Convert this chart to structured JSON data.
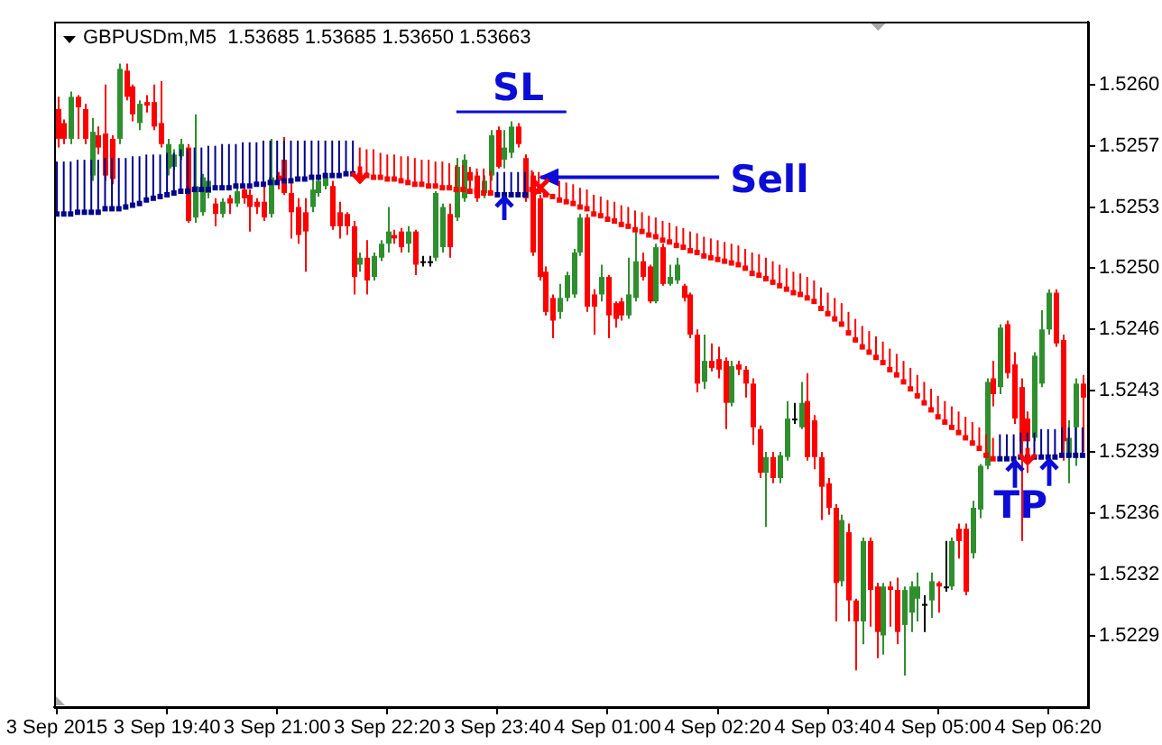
{
  "chart_data": {
    "type": "candlestick",
    "title": "GBPUSDm,M5  1.53685 1.53685 1.53650 1.53663",
    "x": [
      "2015-09-03T18:20",
      "2015-09-03T18:25",
      "2015-09-03T18:30",
      "2015-09-03T18:35",
      "2015-09-03T18:40",
      "2015-09-03T18:45",
      "2015-09-03T18:50",
      "2015-09-03T18:55",
      "2015-09-03T19:00",
      "2015-09-03T19:05",
      "2015-09-03T19:10",
      "2015-09-03T19:15",
      "2015-09-03T19:20",
      "2015-09-03T19:25",
      "2015-09-03T19:30",
      "2015-09-03T19:35",
      "2015-09-03T19:40",
      "2015-09-03T19:45",
      "2015-09-03T19:50",
      "2015-09-03T19:55",
      "2015-09-03T20:00",
      "2015-09-03T20:05",
      "2015-09-03T20:10",
      "2015-09-03T20:15",
      "2015-09-03T20:20",
      "2015-09-03T20:25",
      "2015-09-03T20:30",
      "2015-09-03T20:35",
      "2015-09-03T20:40",
      "2015-09-03T20:45",
      "2015-09-03T20:50",
      "2015-09-03T20:55",
      "2015-09-03T21:00",
      "2015-09-03T21:05",
      "2015-09-03T21:10",
      "2015-09-03T21:15",
      "2015-09-03T21:20",
      "2015-09-03T21:25",
      "2015-09-03T21:30",
      "2015-09-03T21:35",
      "2015-09-03T21:40",
      "2015-09-03T21:45",
      "2015-09-03T21:50",
      "2015-09-03T21:55",
      "2015-09-03T22:00",
      "2015-09-03T22:05",
      "2015-09-03T22:10",
      "2015-09-03T22:15",
      "2015-09-03T22:20",
      "2015-09-03T22:25",
      "2015-09-03T22:30",
      "2015-09-03T22:35",
      "2015-09-03T22:40",
      "2015-09-03T22:45",
      "2015-09-03T22:50",
      "2015-09-03T22:55",
      "2015-09-03T23:00",
      "2015-09-03T23:05",
      "2015-09-03T23:10",
      "2015-09-03T23:15",
      "2015-09-03T23:20",
      "2015-09-03T23:25",
      "2015-09-03T23:30",
      "2015-09-03T23:35",
      "2015-09-03T23:40",
      "2015-09-03T23:45",
      "2015-09-03T23:50",
      "2015-09-03T23:55",
      "2015-09-04T00:00",
      "2015-09-04T00:05",
      "2015-09-04T00:10",
      "2015-09-04T00:15",
      "2015-09-04T00:20",
      "2015-09-04T00:25",
      "2015-09-04T00:30",
      "2015-09-04T00:35",
      "2015-09-04T00:40",
      "2015-09-04T00:45",
      "2015-09-04T00:50",
      "2015-09-04T00:55",
      "2015-09-04T01:00",
      "2015-09-04T01:05",
      "2015-09-04T01:10",
      "2015-09-04T01:15",
      "2015-09-04T01:20",
      "2015-09-04T01:25",
      "2015-09-04T01:30",
      "2015-09-04T01:35",
      "2015-09-04T01:40",
      "2015-09-04T01:45",
      "2015-09-04T01:50",
      "2015-09-04T01:55",
      "2015-09-04T02:00",
      "2015-09-04T02:05",
      "2015-09-04T02:10",
      "2015-09-04T02:15",
      "2015-09-04T02:20",
      "2015-09-04T02:25",
      "2015-09-04T02:30",
      "2015-09-04T02:35",
      "2015-09-04T02:40",
      "2015-09-04T02:45",
      "2015-09-04T02:50",
      "2015-09-04T02:55",
      "2015-09-04T03:00",
      "2015-09-04T03:05",
      "2015-09-04T03:10",
      "2015-09-04T03:15",
      "2015-09-04T03:20",
      "2015-09-04T03:25",
      "2015-09-04T03:30",
      "2015-09-04T03:35",
      "2015-09-04T03:40",
      "2015-09-04T03:45",
      "2015-09-04T03:50",
      "2015-09-04T03:55",
      "2015-09-04T04:00",
      "2015-09-04T04:05",
      "2015-09-04T04:10",
      "2015-09-04T04:15",
      "2015-09-04T04:20",
      "2015-09-04T04:25",
      "2015-09-04T04:30",
      "2015-09-04T04:35",
      "2015-09-04T04:40",
      "2015-09-04T04:45",
      "2015-09-04T04:50",
      "2015-09-04T04:55",
      "2015-09-04T05:00",
      "2015-09-04T05:05",
      "2015-09-04T05:10",
      "2015-09-04T05:15",
      "2015-09-04T05:20",
      "2015-09-04T05:25",
      "2015-09-04T05:30",
      "2015-09-04T05:35",
      "2015-09-04T05:40",
      "2015-09-04T05:45",
      "2015-09-04T05:50",
      "2015-09-04T05:55",
      "2015-09-04T06:00",
      "2015-09-04T06:05",
      "2015-09-04T06:10",
      "2015-09-04T06:15",
      "2015-09-04T06:20",
      "2015-09-04T06:25",
      "2015-09-04T06:30",
      "2015-09-04T06:35",
      "2015-09-04T06:40",
      "2015-09-04T06:45"
    ],
    "ohlc": [
      [
        1.52591,
        1.52598,
        1.52569,
        1.52574
      ],
      [
        1.52583,
        1.52585,
        1.52571,
        1.52574
      ],
      [
        1.52574,
        1.52601,
        1.52571,
        1.52598
      ],
      [
        1.52598,
        1.52599,
        1.52574,
        1.52592
      ],
      [
        1.52591,
        1.52594,
        1.52571,
        1.52574
      ],
      [
        1.52553,
        1.52586,
        1.5255,
        1.52578
      ],
      [
        1.52576,
        1.52581,
        1.52565,
        1.52569
      ],
      [
        1.52577,
        1.52605,
        1.5255,
        1.52553
      ],
      [
        1.52574,
        1.52576,
        1.52548,
        1.52551
      ],
      [
        1.52574,
        1.52617,
        1.52571,
        1.52614
      ],
      [
        1.52613,
        1.52617,
        1.52596,
        1.52598
      ],
      [
        1.52604,
        1.52605,
        1.52584,
        1.52588
      ],
      [
        1.52583,
        1.52596,
        1.52579,
        1.52594
      ],
      [
        1.52595,
        1.52599,
        1.52589,
        1.52593
      ],
      [
        1.52595,
        1.52605,
        1.52579,
        1.52581
      ],
      [
        1.52583,
        1.52607,
        1.52569,
        1.52571
      ],
      [
        1.52557,
        1.52574,
        1.52553,
        1.52571
      ],
      [
        1.52558,
        1.52568,
        1.52556,
        1.52565
      ],
      [
        1.52564,
        1.52574,
        1.52562,
        1.52571
      ],
      [
        1.52569,
        1.52571,
        1.52526,
        1.52527
      ],
      [
        1.52529,
        1.52588,
        1.52526,
        1.52547
      ],
      [
        1.52532,
        1.52554,
        1.5253,
        1.52552
      ],
      [
        1.52543,
        1.52552,
        1.5254,
        1.5255
      ],
      [
        1.52537,
        1.5254,
        1.52524,
        1.52531
      ],
      [
        1.52531,
        1.5254,
        1.52529,
        1.52538
      ],
      [
        1.5254,
        1.52542,
        1.52531,
        1.52537
      ],
      [
        1.52537,
        1.52547,
        1.52535,
        1.52544
      ],
      [
        1.52545,
        1.52547,
        1.52537,
        1.5254
      ],
      [
        1.52542,
        1.52545,
        1.52521,
        1.52535
      ],
      [
        1.52538,
        1.5254,
        1.52531,
        1.52535
      ],
      [
        1.52538,
        1.52548,
        1.52527,
        1.52529
      ],
      [
        1.52531,
        1.52574,
        1.52529,
        1.52552
      ],
      [
        1.52553,
        1.52555,
        1.52545,
        1.5255
      ],
      [
        1.52562,
        1.52575,
        1.52542,
        1.52543
      ],
      [
        1.52543,
        1.5255,
        1.52517,
        1.52532
      ],
      [
        1.52535,
        1.5254,
        1.52514,
        1.52519
      ],
      [
        1.52532,
        1.5254,
        1.52498,
        1.52521
      ],
      [
        1.52535,
        1.52552,
        1.52532,
        1.52545
      ],
      [
        1.52543,
        1.52553,
        1.52541,
        1.5255
      ],
      [
        1.52547,
        1.52554,
        1.52545,
        1.52552
      ],
      [
        1.52547,
        1.5255,
        1.52522,
        1.52524
      ],
      [
        1.52532,
        1.52538,
        1.52517,
        1.52524
      ],
      [
        1.52531,
        1.52532,
        1.52519,
        1.52524
      ],
      [
        1.52524,
        1.52527,
        1.52485,
        1.52495
      ],
      [
        1.52502,
        1.52509,
        1.52498,
        1.52506
      ],
      [
        1.52506,
        1.52516,
        1.52485,
        1.52493
      ],
      [
        1.52495,
        1.52509,
        1.52493,
        1.52507
      ],
      [
        1.52506,
        1.52516,
        1.52504,
        1.52514
      ],
      [
        1.52514,
        1.52535,
        1.52509,
        1.52521
      ],
      [
        1.52519,
        1.52522,
        1.52514,
        1.52517
      ],
      [
        1.52521,
        1.52523,
        1.52509,
        1.52512
      ],
      [
        1.52514,
        1.52524,
        1.52509,
        1.52521
      ],
      [
        1.52521,
        1.52522,
        1.52496,
        1.52502
      ],
      [
        1.52504,
        1.52507,
        1.52501,
        1.52504
      ],
      [
        1.52504,
        1.52507,
        1.52501,
        1.52504
      ],
      [
        1.52506,
        1.52544,
        1.52504,
        1.52543
      ],
      [
        1.52512,
        1.52537,
        1.52509,
        1.52535
      ],
      [
        1.52531,
        1.52537,
        1.52506,
        1.52512
      ],
      [
        1.52529,
        1.52563,
        1.52527,
        1.52558
      ],
      [
        1.5254,
        1.52565,
        1.52538,
        1.52562
      ],
      [
        1.52555,
        1.52557,
        1.52547,
        1.5255
      ],
      [
        1.52553,
        1.52555,
        1.52538,
        1.5254
      ],
      [
        1.52543,
        1.52553,
        1.5254,
        1.5255
      ],
      [
        1.52553,
        1.52579,
        1.5255,
        1.52576
      ],
      [
        1.52579,
        1.52581,
        1.52557,
        1.52558
      ],
      [
        1.52562,
        1.52579,
        1.52557,
        1.52569
      ],
      [
        1.52566,
        1.52584,
        1.52563,
        1.52581
      ],
      [
        1.52581,
        1.52583,
        1.52569,
        1.52571
      ],
      [
        1.52563,
        1.52565,
        1.52538,
        1.5254
      ],
      [
        1.52553,
        1.52555,
        1.52507,
        1.52509
      ],
      [
        1.5254,
        1.52542,
        1.52493,
        1.52495
      ],
      [
        1.52498,
        1.52501,
        1.52473,
        1.52475
      ],
      [
        1.52483,
        1.52485,
        1.5246,
        1.5247
      ],
      [
        1.52475,
        1.52491,
        1.52471,
        1.52483
      ],
      [
        1.52483,
        1.52498,
        1.52481,
        1.52496
      ],
      [
        1.52485,
        1.52511,
        1.52483,
        1.52509
      ],
      [
        1.52509,
        1.52531,
        1.52507,
        1.52529
      ],
      [
        1.52529,
        1.52531,
        1.52475,
        1.52478
      ],
      [
        1.52485,
        1.52488,
        1.52462,
        1.52478
      ],
      [
        1.52485,
        1.52502,
        1.52481,
        1.52495
      ],
      [
        1.52495,
        1.52496,
        1.5246,
        1.52473
      ],
      [
        1.5248,
        1.52481,
        1.52466,
        1.52471
      ],
      [
        1.52481,
        1.52483,
        1.5247,
        1.52473
      ],
      [
        1.52473,
        1.52506,
        1.52471,
        1.52485
      ],
      [
        1.52483,
        1.52521,
        1.52481,
        1.52504
      ],
      [
        1.52504,
        1.52509,
        1.52493,
        1.52495
      ],
      [
        1.52501,
        1.52502,
        1.5248,
        1.52481
      ],
      [
        1.52481,
        1.52514,
        1.5248,
        1.52512
      ],
      [
        1.52512,
        1.52514,
        1.5249,
        1.52491
      ],
      [
        1.52491,
        1.52502,
        1.5249,
        1.52495
      ],
      [
        1.52493,
        1.52506,
        1.52491,
        1.52502
      ],
      [
        1.5249,
        1.52491,
        1.52481,
        1.52483
      ],
      [
        1.52485,
        1.52486,
        1.5246,
        1.52462
      ],
      [
        1.52462,
        1.52465,
        1.52429,
        1.52434
      ],
      [
        1.52435,
        1.52462,
        1.52431,
        1.52447
      ],
      [
        1.52447,
        1.52457,
        1.52441,
        1.52443
      ],
      [
        1.52448,
        1.52455,
        1.52437,
        1.52442
      ],
      [
        1.52447,
        1.52449,
        1.52408,
        1.52423
      ],
      [
        1.52423,
        1.52447,
        1.52421,
        1.52444
      ],
      [
        1.52445,
        1.52447,
        1.52439,
        1.52442
      ],
      [
        1.52442,
        1.52444,
        1.52426,
        1.52434
      ],
      [
        1.52434,
        1.52437,
        1.52399,
        1.52409
      ],
      [
        1.52408,
        1.5241,
        1.5238,
        1.52383
      ],
      [
        1.52383,
        1.52395,
        1.52352,
        1.52392
      ],
      [
        1.52392,
        1.52395,
        1.52377,
        1.5238
      ],
      [
        1.5238,
        1.52395,
        1.52377,
        1.52393
      ],
      [
        1.52392,
        1.52424,
        1.5239,
        1.52414
      ],
      [
        1.52414,
        1.52423,
        1.52411,
        1.52414
      ],
      [
        1.52409,
        1.52435,
        1.52408,
        1.52423
      ],
      [
        1.52424,
        1.5244,
        1.5239,
        1.52392
      ],
      [
        1.52413,
        1.52416,
        1.52385,
        1.52392
      ],
      [
        1.52392,
        1.52395,
        1.52356,
        1.52375
      ],
      [
        1.52377,
        1.5238,
        1.52359,
        1.52363
      ],
      [
        1.52363,
        1.52365,
        1.52298,
        1.5232
      ],
      [
        1.52321,
        1.52359,
        1.52318,
        1.52356
      ],
      [
        1.52349,
        1.52354,
        1.52298,
        1.5231
      ],
      [
        1.5231,
        1.52311,
        1.5227,
        1.52298
      ],
      [
        1.52298,
        1.52346,
        1.52285,
        1.52344
      ],
      [
        1.52344,
        1.52346,
        1.52295,
        1.52316
      ],
      [
        1.52318,
        1.5232,
        1.52277,
        1.52292
      ],
      [
        1.5229,
        1.5232,
        1.52279,
        1.52318
      ],
      [
        1.52318,
        1.52321,
        1.52295,
        1.52316
      ],
      [
        1.52316,
        1.52323,
        1.52285,
        1.52292
      ],
      [
        1.52296,
        1.52318,
        1.52267,
        1.52316
      ],
      [
        1.52303,
        1.52321,
        1.52292,
        1.52318
      ],
      [
        1.52311,
        1.52326,
        1.52298,
        1.52318
      ],
      [
        1.52308,
        1.52313,
        1.52292,
        1.52308
      ],
      [
        1.5231,
        1.52326,
        1.523,
        1.52321
      ],
      [
        1.5232,
        1.52321,
        1.52303,
        1.52318
      ],
      [
        1.52318,
        1.52344,
        1.52315,
        1.52318
      ],
      [
        1.52318,
        1.52346,
        1.52316,
        1.52344
      ],
      [
        1.52351,
        1.52354,
        1.52334,
        1.52344
      ],
      [
        1.52351,
        1.52354,
        1.52313,
        1.52315
      ],
      [
        1.52337,
        1.52367,
        1.52334,
        1.52363
      ],
      [
        1.52362,
        1.52388,
        1.52357,
        1.52387
      ],
      [
        1.52387,
        1.52437,
        1.52385,
        1.52435
      ],
      [
        1.52437,
        1.52447,
        1.52421,
        1.52428
      ],
      [
        1.52432,
        1.52468,
        1.52428,
        1.52466
      ],
      [
        1.52468,
        1.5247,
        1.52437,
        1.5244
      ],
      [
        1.52445,
        1.52452,
        1.52411,
        1.52414
      ],
      [
        1.52432,
        1.52437,
        1.52344,
        1.52401
      ],
      [
        1.52414,
        1.52418,
        1.52383,
        1.52401
      ],
      [
        1.52403,
        1.52452,
        1.52401,
        1.5245
      ],
      [
        1.52434,
        1.52476,
        1.52432,
        1.52465
      ],
      [
        1.52465,
        1.52488,
        1.52462,
        1.52486
      ],
      [
        1.52486,
        1.52488,
        1.52455,
        1.52457
      ],
      [
        1.52459,
        1.52462,
        1.5239,
        1.52401
      ],
      [
        1.52392,
        1.52413,
        1.52377,
        1.52403
      ],
      [
        1.52409,
        1.52437,
        1.52387,
        1.52434
      ],
      [
        1.52434,
        1.52439,
        1.52395,
        1.52426
      ]
    ],
    "colors": [
      "#ff0000",
      "#ff0000",
      "#2f8f2f",
      "#ff0000",
      "#ff0000",
      "#2f8f2f",
      "#ff0000",
      "#ff0000",
      "#ff0000",
      "#2f8f2f",
      "#ff0000",
      "#ff0000",
      "#2f8f2f",
      "#ff0000",
      "#ff0000",
      "#ff0000",
      "#2f8f2f",
      "#2f8f2f",
      "#2f8f2f",
      "#ff0000",
      "#2f8f2f",
      "#2f8f2f",
      "#2f8f2f",
      "#ff0000",
      "#2f8f2f",
      "#ff0000",
      "#2f8f2f",
      "#ff0000",
      "#ff0000",
      "#ff0000",
      "#ff0000",
      "#2f8f2f",
      "#ff0000",
      "#ff0000",
      "#ff0000",
      "#ff0000",
      "#ff0000",
      "#2f8f2f",
      "#2f8f2f",
      "#2f8f2f",
      "#ff0000",
      "#ff0000",
      "#ff0000",
      "#ff0000",
      "#2f8f2f",
      "#ff0000",
      "#2f8f2f",
      "#2f8f2f",
      "#2f8f2f",
      "#ff0000",
      "#ff0000",
      "#2f8f2f",
      "#ff0000",
      "#000000",
      "#000000",
      "#2f8f2f",
      "#2f8f2f",
      "#ff0000",
      "#2f8f2f",
      "#2f8f2f",
      "#ff0000",
      "#ff0000",
      "#2f8f2f",
      "#2f8f2f",
      "#ff0000",
      "#2f8f2f",
      "#2f8f2f",
      "#ff0000",
      "#ff0000",
      "#ff0000",
      "#ff0000",
      "#ff0000",
      "#ff0000",
      "#2f8f2f",
      "#2f8f2f",
      "#2f8f2f",
      "#2f8f2f",
      "#ff0000",
      "#ff0000",
      "#2f8f2f",
      "#ff0000",
      "#ff0000",
      "#ff0000",
      "#2f8f2f",
      "#2f8f2f",
      "#ff0000",
      "#ff0000",
      "#2f8f2f",
      "#ff0000",
      "#2f8f2f",
      "#2f8f2f",
      "#ff0000",
      "#ff0000",
      "#ff0000",
      "#2f8f2f",
      "#ff0000",
      "#ff0000",
      "#ff0000",
      "#2f8f2f",
      "#ff0000",
      "#ff0000",
      "#ff0000",
      "#ff0000",
      "#2f8f2f",
      "#ff0000",
      "#2f8f2f",
      "#2f8f2f",
      "#000000",
      "#2f8f2f",
      "#ff0000",
      "#ff0000",
      "#ff0000",
      "#ff0000",
      "#ff0000",
      "#2f8f2f",
      "#ff0000",
      "#ff0000",
      "#2f8f2f",
      "#ff0000",
      "#ff0000",
      "#2f8f2f",
      "#ff0000",
      "#ff0000",
      "#2f8f2f",
      "#2f8f2f",
      "#2f8f2f",
      "#000000",
      "#2f8f2f",
      "#ff0000",
      "#000000",
      "#2f8f2f",
      "#ff0000",
      "#ff0000",
      "#2f8f2f",
      "#2f8f2f",
      "#2f8f2f",
      "#ff0000",
      "#2f8f2f",
      "#ff0000",
      "#ff0000",
      "#ff0000",
      "#ff0000",
      "#2f8f2f",
      "#2f8f2f",
      "#2f8f2f",
      "#ff0000",
      "#ff0000",
      "#2f8f2f",
      "#2f8f2f",
      "#ff0000"
    ],
    "series": [
      {
        "type": "bar",
        "base": [
          1.52531,
          1.52531,
          1.52531,
          1.52532,
          1.52532,
          1.52532,
          1.52532,
          1.52534,
          1.52534,
          1.52534,
          1.52535,
          1.52536,
          1.52537,
          1.52539,
          1.5254,
          1.52541,
          1.52542,
          1.52543,
          1.52544,
          1.52544,
          1.52545,
          1.52545,
          1.52545,
          1.52546,
          1.52546,
          1.52546,
          1.52547,
          1.52547,
          1.52547,
          1.52548,
          1.52548,
          1.52549,
          1.52549,
          1.5255,
          1.5255,
          1.52551,
          1.52551,
          1.52552,
          1.52552,
          1.52553,
          1.52553,
          1.52553,
          1.52554,
          1.52554,
          1.52553,
          1.52553,
          1.52552,
          1.52552,
          1.52551,
          1.52551,
          1.5255,
          1.52549,
          1.52548,
          1.52548,
          1.52547,
          1.52547,
          1.52546,
          1.52546,
          1.52545,
          1.52545,
          1.52544,
          1.52544,
          1.52543,
          1.52543,
          1.52542,
          1.52542,
          1.52542,
          1.52542,
          1.52542,
          1.52545,
          1.52544,
          null,
          null,
          1.52539,
          1.52538,
          1.52537,
          1.52535,
          1.52534,
          1.52531,
          1.5253,
          1.52528,
          1.52527,
          1.52525,
          1.52524,
          1.52522,
          1.52521,
          1.52519,
          1.52518,
          1.52516,
          1.52515,
          1.52513,
          1.52512,
          1.5251,
          1.52509,
          1.52507,
          1.52506,
          1.52505,
          1.52504,
          1.52503,
          1.52502,
          1.525,
          1.52497,
          1.52496,
          1.52494,
          1.52492,
          1.5249,
          1.52488,
          1.52486,
          1.52485,
          1.52483,
          1.52481,
          1.52477,
          1.52474,
          1.52471,
          1.52468,
          1.52463,
          1.52459,
          1.52455,
          1.52452,
          1.52449,
          1.52446,
          1.52442,
          1.52439,
          1.52435,
          1.52431,
          1.52427,
          1.52423,
          1.52419,
          1.52415,
          1.52412,
          1.52409,
          1.52406,
          1.52403,
          1.524,
          1.52397,
          1.52393,
          1.52391,
          1.52391,
          1.52391,
          1.52391,
          1.52392,
          1.52392,
          1.52392,
          1.52392,
          1.52392,
          1.52392,
          1.52393,
          1.52393,
          1.52393,
          1.52393
        ],
        "values": [
          0.0003,
          0.0003,
          0.0003,
          0.0003,
          0.0003,
          0.0003,
          0.0003,
          0.00029,
          0.00029,
          0.00029,
          0.00028,
          0.00028,
          0.00027,
          0.00026,
          0.00025,
          0.00024,
          0.00024,
          0.00023,
          0.00024,
          0.00024,
          0.00024,
          0.00024,
          0.00025,
          0.00024,
          0.00025,
          0.00025,
          0.00024,
          0.00025,
          0.00025,
          0.00024,
          0.00025,
          0.00024,
          0.00024,
          0.00023,
          0.00023,
          0.00022,
          0.00022,
          0.00021,
          0.00021,
          0.0002,
          0.0002,
          0.0002,
          0.00019,
          0.00019,
          0.00016,
          0.00015,
          0.00016,
          0.00014,
          0.00014,
          0.00014,
          0.00014,
          0.00015,
          0.00015,
          0.00014,
          0.00015,
          0.00014,
          0.00015,
          0.00014,
          0.00014,
          0.00014,
          0.00014,
          0.00013,
          0.00014,
          0.00013,
          0.00013,
          0.00013,
          0.00013,
          0.00013,
          0.00013,
          0.00011,
          0.00011,
          null,
          null,
          0.00011,
          0.00011,
          0.00011,
          0.00011,
          0.00011,
          0.00011,
          0.00011,
          0.00011,
          0.00011,
          0.00011,
          0.00011,
          0.00011,
          0.00011,
          0.00011,
          0.00011,
          0.00011,
          0.00011,
          0.00011,
          0.00011,
          0.00011,
          0.00011,
          0.00011,
          0.00011,
          0.00011,
          0.00011,
          0.00011,
          0.00011,
          0.00011,
          0.00012,
          0.00012,
          0.00012,
          0.00012,
          0.00012,
          0.00012,
          0.00012,
          0.00012,
          0.00012,
          0.00012,
          0.00012,
          0.00012,
          0.00012,
          0.00012,
          0.00012,
          0.00012,
          0.00012,
          0.00012,
          0.00012,
          0.00012,
          0.00012,
          0.00012,
          0.00012,
          0.00012,
          0.00012,
          0.00012,
          0.00012,
          0.00012,
          0.00012,
          0.00012,
          0.00012,
          0.00012,
          0.00012,
          0.00012,
          0.00012,
          0.00012,
          0.00014,
          0.00014,
          0.00014,
          0.00014,
          0.00014,
          0.00014,
          0.00016,
          0.00016,
          0.00016,
          0.00016,
          0.00016,
          0.00016,
          0.00016
        ],
        "colors": [
          "#00008b",
          "#00008b",
          "#00008b",
          "#00008b",
          "#00008b",
          "#00008b",
          "#00008b",
          "#00008b",
          "#00008b",
          "#00008b",
          "#00008b",
          "#00008b",
          "#00008b",
          "#00008b",
          "#00008b",
          "#00008b",
          "#00008b",
          "#00008b",
          "#00008b",
          "#00008b",
          "#00008b",
          "#00008b",
          "#00008b",
          "#00008b",
          "#00008b",
          "#00008b",
          "#00008b",
          "#00008b",
          "#00008b",
          "#00008b",
          "#00008b",
          "#00008b",
          "#00008b",
          "#00008b",
          "#00008b",
          "#00008b",
          "#00008b",
          "#00008b",
          "#00008b",
          "#00008b",
          "#00008b",
          "#00008b",
          "#00008b",
          "#00008b",
          "#ff0000",
          "#ff0000",
          "#ff0000",
          "#ff0000",
          "#ff0000",
          "#ff0000",
          "#ff0000",
          "#ff0000",
          "#ff0000",
          "#ff0000",
          "#ff0000",
          "#ff0000",
          "#ff0000",
          "#ff0000",
          "#ff0000",
          "#ff0000",
          "#ff0000",
          "#ff0000",
          "#ff0000",
          "#ff0000",
          "#00008b",
          "#00008b",
          "#00008b",
          "#00008b",
          "#00008b",
          "#ff0000",
          "#ff0000",
          "#ff0000",
          "#ff0000",
          "#ff0000",
          "#ff0000",
          "#ff0000",
          "#ff0000",
          "#ff0000",
          "#ff0000",
          "#ff0000",
          "#ff0000",
          "#ff0000",
          "#ff0000",
          "#ff0000",
          "#ff0000",
          "#ff0000",
          "#ff0000",
          "#ff0000",
          "#ff0000",
          "#ff0000",
          "#ff0000",
          "#ff0000",
          "#ff0000",
          "#ff0000",
          "#ff0000",
          "#ff0000",
          "#ff0000",
          "#ff0000",
          "#ff0000",
          "#ff0000",
          "#ff0000",
          "#ff0000",
          "#ff0000",
          "#ff0000",
          "#ff0000",
          "#ff0000",
          "#ff0000",
          "#ff0000",
          "#ff0000",
          "#ff0000",
          "#ff0000",
          "#ff0000",
          "#ff0000",
          "#ff0000",
          "#ff0000",
          "#ff0000",
          "#ff0000",
          "#ff0000",
          "#ff0000",
          "#ff0000",
          "#ff0000",
          "#ff0000",
          "#ff0000",
          "#ff0000",
          "#ff0000",
          "#ff0000",
          "#ff0000",
          "#ff0000",
          "#ff0000",
          "#ff0000",
          "#ff0000",
          "#ff0000",
          "#ff0000",
          "#ff0000",
          "#ff0000",
          "#ff0000",
          "#ff0000",
          "#00008b",
          "#00008b",
          "#00008b",
          "#00008b",
          "#00008b",
          "#00008b",
          "#00008b",
          "#00008b",
          "#00008b",
          "#00008b",
          "#00008b",
          "#00008b",
          "#00008b"
        ]
      },
      {
        "type": "scatter",
        "marker": "square",
        "values": [
          1.52531,
          1.52531,
          1.52531,
          1.52532,
          1.52532,
          1.52532,
          1.52532,
          1.52534,
          1.52534,
          1.52534,
          1.52535,
          1.52536,
          1.52537,
          1.52539,
          1.5254,
          1.52541,
          1.52542,
          1.52543,
          1.52544,
          1.52544,
          1.52545,
          1.52545,
          1.52545,
          1.52546,
          1.52546,
          1.52546,
          1.52547,
          1.52547,
          1.52547,
          1.52548,
          1.52548,
          1.52549,
          1.52549,
          1.5255,
          1.5255,
          1.52551,
          1.52551,
          1.52552,
          1.52552,
          1.52553,
          1.52553,
          1.52553,
          1.52554,
          1.52554,
          1.52553,
          1.52553,
          1.52552,
          1.52552,
          1.52551,
          1.52551,
          1.5255,
          1.52549,
          1.52548,
          1.52548,
          1.52547,
          1.52547,
          1.52546,
          1.52546,
          1.52545,
          1.52545,
          1.52544,
          1.52544,
          1.52543,
          1.52543,
          1.52542,
          1.52542,
          1.52542,
          1.52542,
          1.52542,
          1.52545,
          1.52544,
          1.52542,
          1.52541,
          1.52539,
          1.52538,
          1.52537,
          1.52535,
          1.52534,
          1.52531,
          1.5253,
          1.52528,
          1.52527,
          1.52525,
          1.52524,
          1.52522,
          1.52521,
          1.52519,
          1.52518,
          1.52516,
          1.52515,
          1.52513,
          1.52512,
          1.5251,
          1.52509,
          1.52507,
          1.52506,
          1.52505,
          1.52504,
          1.52503,
          1.52502,
          1.525,
          1.52497,
          1.52496,
          1.52494,
          1.52492,
          1.5249,
          1.52488,
          1.52486,
          1.52485,
          1.52483,
          1.52481,
          1.52477,
          1.52474,
          1.52471,
          1.52468,
          1.52463,
          1.52459,
          1.52455,
          1.52452,
          1.52449,
          1.52446,
          1.52442,
          1.52439,
          1.52435,
          1.52431,
          1.52427,
          1.52423,
          1.52419,
          1.52415,
          1.52412,
          1.52409,
          1.52406,
          1.52403,
          1.524,
          1.52397,
          1.52393,
          1.52391,
          1.52391,
          1.52391,
          1.52391,
          1.52392,
          1.52392,
          1.52392,
          1.52392,
          1.52392,
          1.52392,
          1.52393,
          1.52393,
          1.52393,
          1.52393
        ],
        "colors": [
          "#00008b",
          "#00008b",
          "#00008b",
          "#00008b",
          "#00008b",
          "#00008b",
          "#00008b",
          "#00008b",
          "#00008b",
          "#00008b",
          "#00008b",
          "#00008b",
          "#00008b",
          "#00008b",
          "#00008b",
          "#00008b",
          "#00008b",
          "#00008b",
          "#00008b",
          "#00008b",
          "#00008b",
          "#00008b",
          "#00008b",
          "#00008b",
          "#00008b",
          "#00008b",
          "#00008b",
          "#00008b",
          "#00008b",
          "#00008b",
          "#00008b",
          "#00008b",
          "#00008b",
          "#00008b",
          "#00008b",
          "#00008b",
          "#00008b",
          "#00008b",
          "#00008b",
          "#00008b",
          "#00008b",
          "#00008b",
          "#00008b",
          "#00008b",
          "#ff0000",
          "#ff0000",
          "#ff0000",
          "#ff0000",
          "#ff0000",
          "#ff0000",
          "#ff0000",
          "#ff0000",
          "#ff0000",
          "#ff0000",
          "#ff0000",
          "#ff0000",
          "#ff0000",
          "#ff0000",
          "#ff0000",
          "#ff0000",
          "#ff0000",
          "#ff0000",
          "#ff0000",
          "#ff0000",
          "#00008b",
          "#00008b",
          "#00008b",
          "#00008b",
          "#00008b",
          "#ff0000",
          "#ff0000",
          "#ff0000",
          "#ff0000",
          "#ff0000",
          "#ff0000",
          "#ff0000",
          "#ff0000",
          "#ff0000",
          "#ff0000",
          "#ff0000",
          "#ff0000",
          "#ff0000",
          "#ff0000",
          "#ff0000",
          "#ff0000",
          "#ff0000",
          "#ff0000",
          "#ff0000",
          "#ff0000",
          "#ff0000",
          "#ff0000",
          "#ff0000",
          "#ff0000",
          "#ff0000",
          "#ff0000",
          "#ff0000",
          "#ff0000",
          "#ff0000",
          "#ff0000",
          "#ff0000",
          "#ff0000",
          "#ff0000",
          "#ff0000",
          "#ff0000",
          "#ff0000",
          "#ff0000",
          "#ff0000",
          "#ff0000",
          "#ff0000",
          "#ff0000",
          "#ff0000",
          "#ff0000",
          "#ff0000",
          "#ff0000",
          "#ff0000",
          "#ff0000",
          "#ff0000",
          "#ff0000",
          "#ff0000",
          "#ff0000",
          "#ff0000",
          "#ff0000",
          "#ff0000",
          "#ff0000",
          "#ff0000",
          "#ff0000",
          "#ff0000",
          "#ff0000",
          "#ff0000",
          "#ff0000",
          "#ff0000",
          "#ff0000",
          "#ff0000",
          "#ff0000",
          "#ff0000",
          "#ff0000",
          "#ff0000",
          "#00008b",
          "#00008b",
          "#00008b",
          "#00008b",
          "#00008b",
          "#00008b",
          "#00008b",
          "#00008b",
          "#00008b",
          "#00008b",
          "#00008b",
          "#00008b",
          "#00008b"
        ]
      }
    ],
    "xlim": [
      "2015-09-03T18:18",
      "2015-09-04T06:49"
    ],
    "xticks": [
      {
        "value": "2015-09-03T18:20",
        "label": "3 Sep 2015"
      },
      {
        "value": "2015-09-03T19:40",
        "label": "3 Sep 19:40"
      },
      {
        "value": "2015-09-03T21:00",
        "label": "3 Sep 21:00"
      },
      {
        "value": "2015-09-03T22:20",
        "label": "3 Sep 22:20"
      },
      {
        "value": "2015-09-03T23:40",
        "label": "3 Sep 23:40"
      },
      {
        "value": "2015-09-04T01:00",
        "label": "4 Sep 01:00"
      },
      {
        "value": "2015-09-04T02:20",
        "label": "4 Sep 02:20"
      },
      {
        "value": "2015-09-04T03:40",
        "label": "4 Sep 03:40"
      },
      {
        "value": "2015-09-04T05:00",
        "label": "4 Sep 05:00"
      },
      {
        "value": "2015-09-04T06:20",
        "label": "4 Sep 06:20"
      }
    ],
    "ylim": [
      1.52249,
      1.52641
    ],
    "yticks": [
      {
        "value": 1.52605,
        "label": "1.5260"
      },
      {
        "value": 1.5257,
        "label": "1.5257"
      },
      {
        "value": 1.52535,
        "label": "1.5253"
      },
      {
        "value": 1.525,
        "label": "1.5250"
      },
      {
        "value": 1.52465,
        "label": "1.5246"
      },
      {
        "value": 1.5243,
        "label": "1.5243"
      },
      {
        "value": 1.52395,
        "label": "1.5239"
      },
      {
        "value": 1.5236,
        "label": "1.5236"
      },
      {
        "value": 1.52325,
        "label": "1.5232"
      },
      {
        "value": 1.5229,
        "label": "1.5229"
      }
    ],
    "annotations": [
      "SL",
      {
        "text": "Sell",
        "x": "2015-09-04T00:10",
        "y": 1.52552
      },
      {
        "text": "TP",
        "x": "2015-09-04T06:00",
        "y": 1.52392
      }
    ]
  }
}
